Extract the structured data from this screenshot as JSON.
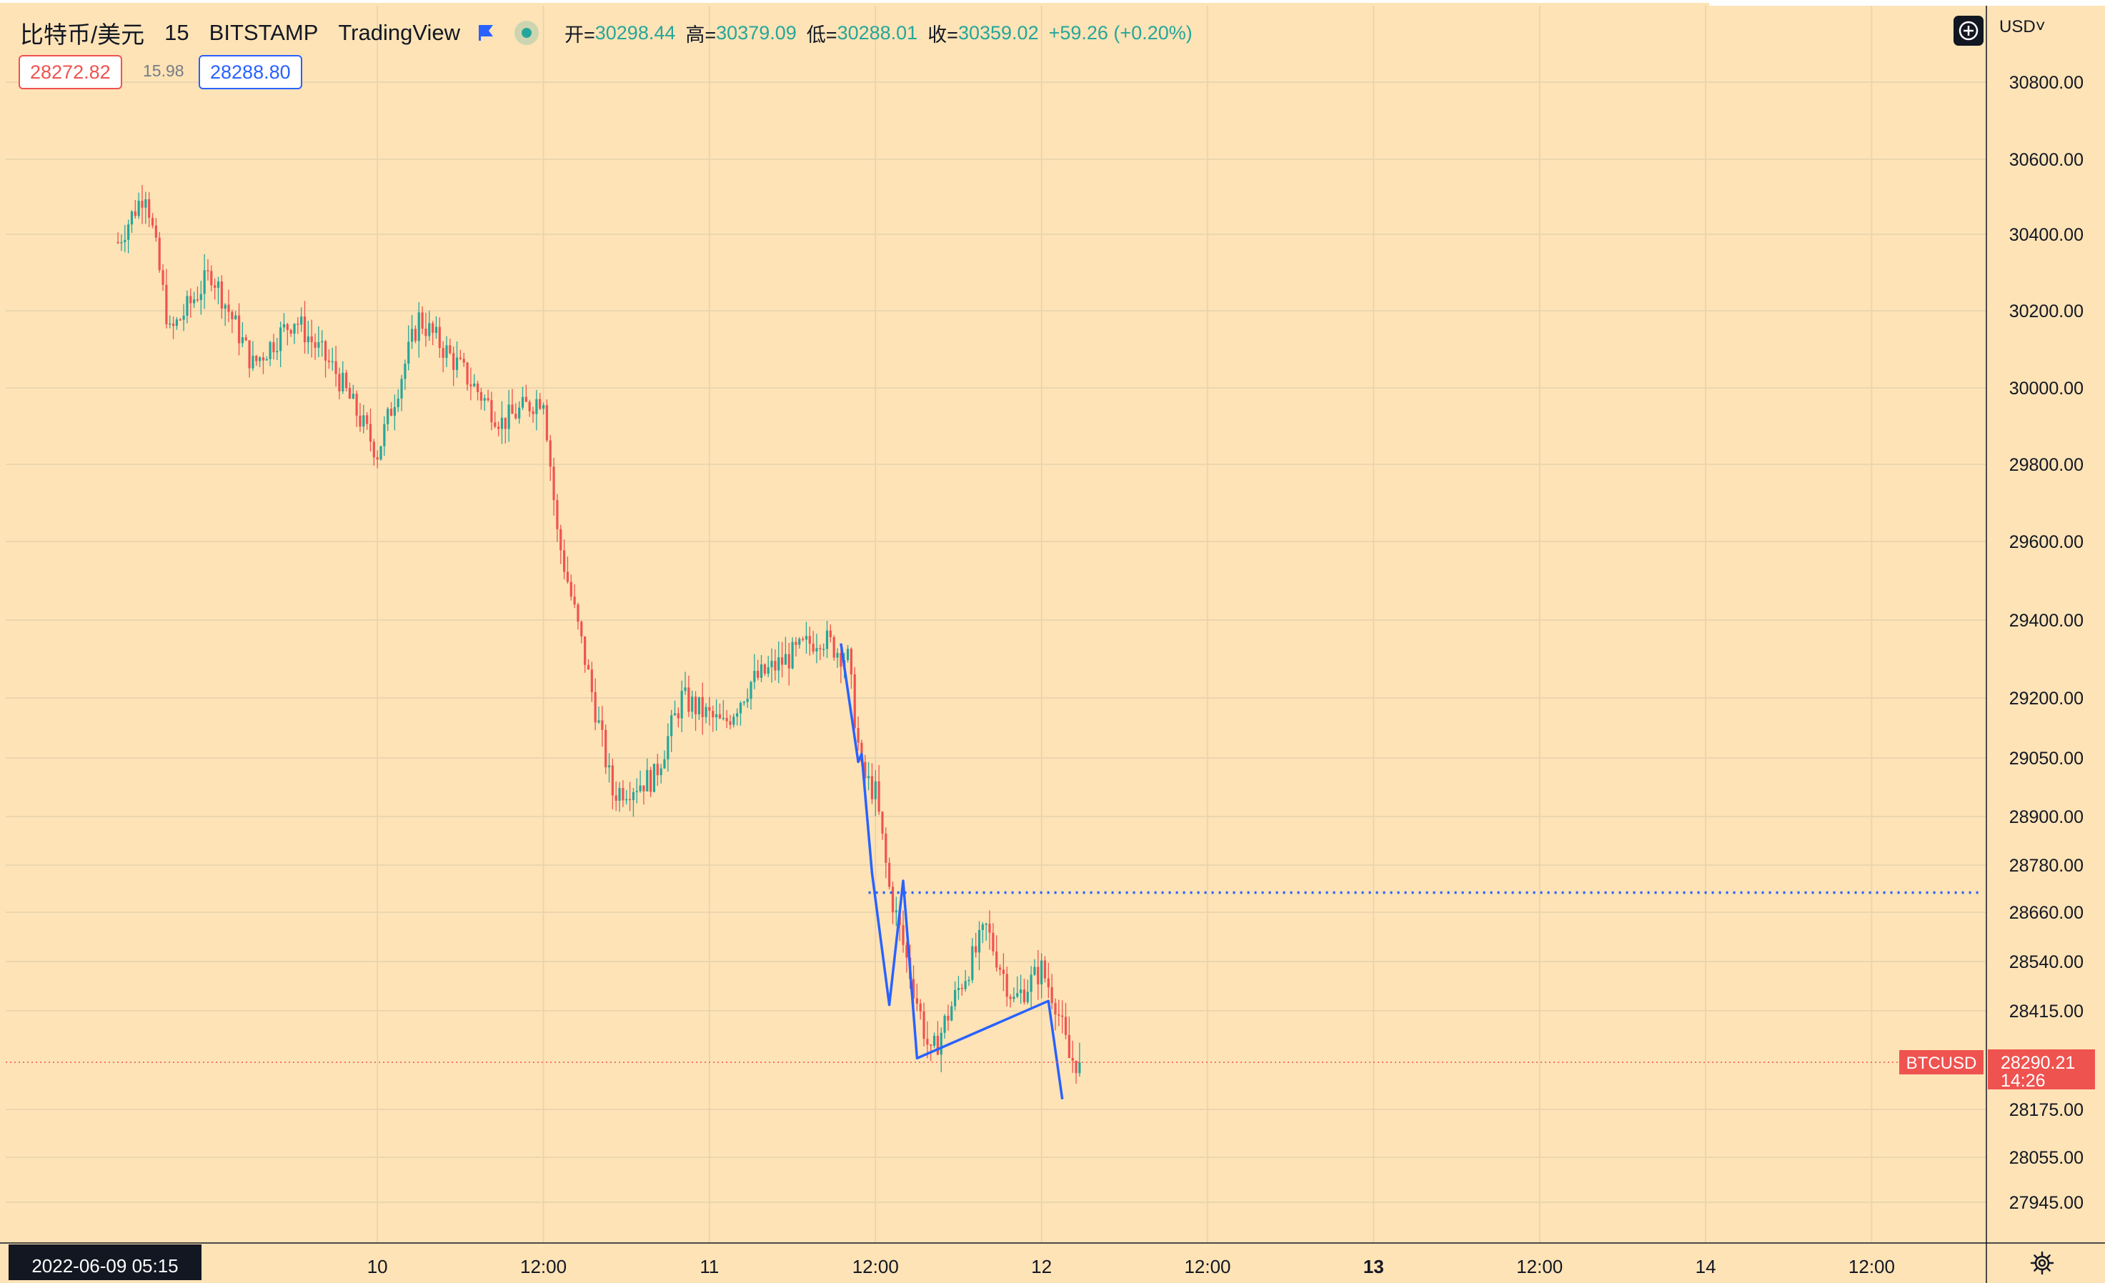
{
  "header": {
    "symbol": "比特币/美元",
    "interval": "15",
    "exchange": "BITSTAMP",
    "source": "TradingView",
    "open_label": "开=",
    "open": "30298.44",
    "high_label": "高=",
    "high": "30379.09",
    "low_label": "低=",
    "low": "30288.01",
    "close_label": "收=",
    "close": "30359.02",
    "change": "+59.26 (+0.20%)"
  },
  "quote": {
    "bid": "28272.82",
    "spread": "15.98",
    "ask": "28288.80"
  },
  "toolbar": {
    "currency": "USD˅",
    "add_icon": "plus-circle-icon",
    "settings_icon": "gear-icon"
  },
  "price_tag": {
    "symbol": "BTCUSD",
    "price": "28290.21",
    "countdown": "14:26"
  },
  "crosshair_date": "2022-06-09   05:15",
  "colors": {
    "background": "#fde3b6",
    "up": "#26a69a",
    "down": "#ef5350",
    "drawing": "#2962ff",
    "price_line": "#ef5350"
  },
  "chart_data": {
    "type": "candlestick",
    "symbol": "BTCUSD",
    "interval_minutes": 15,
    "y_ticks": [
      30800,
      30600,
      30400,
      30200,
      30000,
      29800,
      29600,
      29400,
      29200,
      29050,
      28900,
      28780,
      28660,
      28540,
      28415,
      28290.21,
      28175,
      28055,
      27945
    ],
    "y_tick_labels": [
      "30800.00",
      "30600.00",
      "30400.00",
      "30200.00",
      "30000.00",
      "29800.00",
      "29600.00",
      "29400.00",
      "29200.00",
      "29050.00",
      "28900.00",
      "28780.00",
      "28660.00",
      "28540.00",
      "28415.00",
      "",
      "28175.00",
      "28055.00",
      "27945.00"
    ],
    "x_ticks": [
      "2022-06-09 05:15",
      "10",
      "12:00",
      "11",
      "12:00",
      "12",
      "12:00",
      "13",
      "12:00",
      "14",
      "12:00"
    ],
    "x_tick_bold": [
      false,
      false,
      false,
      false,
      false,
      false,
      false,
      true,
      false,
      false,
      false
    ],
    "x_range": [
      "2022-06-09 05:15",
      "2022-06-14 17:00"
    ],
    "anchors": [
      [
        "2022-06-09 05:15",
        30380
      ],
      [
        "2022-06-09 07:15",
        30520
      ],
      [
        "2022-06-09 09:00",
        30140
      ],
      [
        "2022-06-09 12:00",
        30300
      ],
      [
        "2022-06-09 15:00",
        30060
      ],
      [
        "2022-06-09 18:00",
        30180
      ],
      [
        "2022-06-09 21:00",
        30040
      ],
      [
        "2022-06-10 00:00",
        29830
      ],
      [
        "2022-06-10 03:00",
        30180
      ],
      [
        "2022-06-10 06:00",
        30050
      ],
      [
        "2022-06-10 09:00",
        29910
      ],
      [
        "2022-06-10 12:00",
        29980
      ],
      [
        "2022-06-10 13:00",
        29620
      ],
      [
        "2022-06-10 15:00",
        29300
      ],
      [
        "2022-06-10 17:00",
        28960
      ],
      [
        "2022-06-10 20:00",
        29000
      ],
      [
        "2022-06-10 22:00",
        29200
      ],
      [
        "2022-06-11 01:00",
        29130
      ],
      [
        "2022-06-11 03:00",
        29240
      ],
      [
        "2022-06-11 06:00",
        29310
      ],
      [
        "2022-06-11 08:00",
        29360
      ],
      [
        "2022-06-11 10:00",
        29300
      ],
      [
        "2022-06-11 11:00",
        29010
      ],
      [
        "2022-06-11 12:00",
        28960
      ],
      [
        "2022-06-11 13:00",
        28720
      ],
      [
        "2022-06-11 14:00",
        28580
      ],
      [
        "2022-06-11 16:00",
        28300
      ],
      [
        "2022-06-11 18:00",
        28470
      ],
      [
        "2022-06-11 20:00",
        28620
      ],
      [
        "2022-06-11 22:00",
        28440
      ],
      [
        "2022-06-12 00:00",
        28520
      ],
      [
        "2022-06-12 01:00",
        28440
      ],
      [
        "2022-06-12 02:00",
        28300
      ],
      [
        "2022-06-12 02:45",
        28290.21
      ]
    ],
    "drawings": {
      "trend_line": [
        [
          "2022-06-11 09:30",
          29340
        ],
        [
          "2022-06-11 10:45",
          29040
        ],
        [
          "2022-06-11 11:00",
          29060
        ],
        [
          "2022-06-11 11:45",
          28760
        ],
        [
          "2022-06-11 13:00",
          28430
        ],
        [
          "2022-06-11 14:00",
          28740
        ],
        [
          "2022-06-11 15:00",
          28300
        ],
        [
          "2022-06-12 00:30",
          28440
        ],
        [
          "2022-06-12 01:30",
          28200
        ]
      ],
      "horizontal_level": 28710
    },
    "last_price": 28290.21,
    "grid": true,
    "legend_position": "top-left"
  }
}
